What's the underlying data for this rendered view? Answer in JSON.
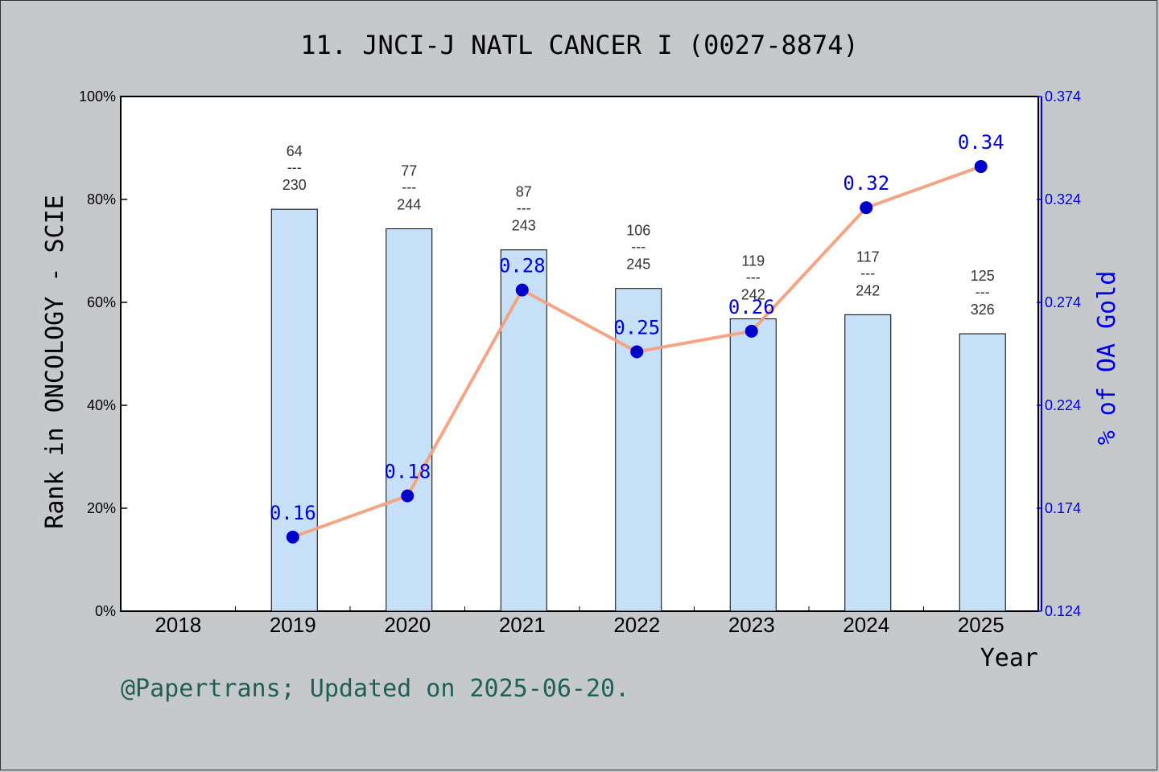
{
  "title": "11. JNCI-J NATL CANCER I (0027-8874)",
  "footer": "@Papertrans; Updated on 2025-06-20.",
  "colors": {
    "background": "#c5c9cc",
    "bar_fill": "#c6e0f7",
    "line": "#f4a07c",
    "marker": "#0000cc",
    "right_axis": "#0000e6"
  },
  "chart_data": {
    "type": "bar",
    "x_label": "Year",
    "y_label": "Rank in ONCOLOGY - SCIE",
    "y2_label": "% of OA Gold",
    "categories": [
      "2018",
      "2019",
      "2020",
      "2021",
      "2022",
      "2023",
      "2024",
      "2025"
    ],
    "y_ticks": [
      "0%",
      "20%",
      "40%",
      "60%",
      "80%",
      "100%"
    ],
    "y_range": [
      0,
      100
    ],
    "y2_ticks": [
      "0.124",
      "0.174",
      "0.224",
      "0.274",
      "0.324",
      "0.374"
    ],
    "y2_range": [
      0.124,
      0.374
    ],
    "rank_series": [
      {
        "year": "2019",
        "rank": 64,
        "total": 230,
        "percentile": 78.1
      },
      {
        "year": "2020",
        "rank": 77,
        "total": 244,
        "percentile": 74.3
      },
      {
        "year": "2021",
        "rank": 87,
        "total": 243,
        "percentile": 70.2
      },
      {
        "year": "2022",
        "rank": 106,
        "total": 245,
        "percentile": 62.7
      },
      {
        "year": "2023",
        "rank": 119,
        "total": 242,
        "percentile": 56.8
      },
      {
        "year": "2024",
        "rank": 117,
        "total": 242,
        "percentile": 57.6
      },
      {
        "year": "2025",
        "rank": 125,
        "total": 326,
        "percentile": 53.9
      }
    ],
    "oa_series": [
      {
        "year": "2019",
        "value": 0.16,
        "label": "0.16"
      },
      {
        "year": "2020",
        "value": 0.18,
        "label": "0.18"
      },
      {
        "year": "2021",
        "value": 0.28,
        "label": "0.28"
      },
      {
        "year": "2022",
        "value": 0.25,
        "label": "0.25"
      },
      {
        "year": "2023",
        "value": 0.26,
        "label": "0.26"
      },
      {
        "year": "2024",
        "value": 0.32,
        "label": "0.32"
      },
      {
        "year": "2025",
        "value": 0.34,
        "label": "0.34"
      }
    ],
    "rank_separator": "---",
    "grid": false
  }
}
